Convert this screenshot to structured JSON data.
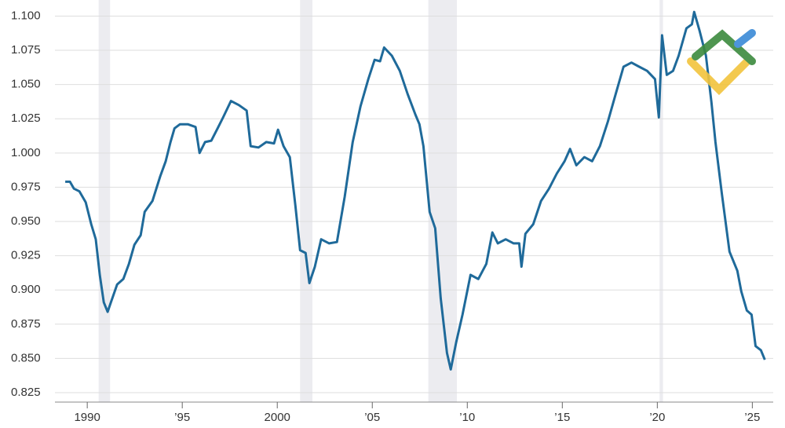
{
  "chart_data": {
    "type": "line",
    "series": [
      {
        "color": "#1f6a9a",
        "x": [
          1988.84,
          1989.09,
          1989.3,
          1989.59,
          1989.92,
          1990.21,
          1990.45,
          1990.66,
          1990.87,
          1991.07,
          1991.32,
          1991.57,
          1991.9,
          1992.19,
          1992.48,
          1992.81,
          1993.02,
          1993.43,
          1993.84,
          1994.13,
          1994.38,
          1994.59,
          1994.88,
          1995.29,
          1995.7,
          1995.91,
          1996.2,
          1996.53,
          1996.86,
          1997.15,
          1997.56,
          1997.98,
          1998.39,
          1998.6,
          1999.01,
          1999.42,
          1999.83,
          2000.04,
          2000.33,
          2000.66,
          2000.95,
          2001.2,
          2001.49,
          2001.69,
          2001.98,
          2002.31,
          2002.73,
          2003.14,
          2003.55,
          2003.97,
          2004.38,
          2004.79,
          2005.12,
          2005.41,
          2005.62,
          2006.03,
          2006.45,
          2006.86,
          2007.27,
          2007.48,
          2007.69,
          2008.02,
          2008.31,
          2008.6,
          2008.93,
          2009.13,
          2009.42,
          2009.75,
          2010.17,
          2010.58,
          2011.0,
          2011.32,
          2011.61,
          2012.02,
          2012.44,
          2012.73,
          2012.85,
          2013.06,
          2013.47,
          2013.88,
          2014.3,
          2014.71,
          2015.12,
          2015.41,
          2015.74,
          2016.16,
          2016.57,
          2016.98,
          2017.4,
          2017.81,
          2018.22,
          2018.64,
          2019.05,
          2019.46,
          2019.88,
          2020.08,
          2020.25,
          2020.5,
          2020.83,
          2021.12,
          2021.53,
          2021.82,
          2021.94,
          2022.23,
          2022.56,
          2022.85,
          2023.06,
          2023.39,
          2023.8,
          2024.21,
          2024.42,
          2024.71,
          2024.96,
          2025.17,
          2025.45,
          2025.66
        ],
        "values": [
          0.979,
          0.979,
          0.974,
          0.972,
          0.964,
          0.948,
          0.937,
          0.911,
          0.891,
          0.884,
          0.894,
          0.904,
          0.908,
          0.919,
          0.933,
          0.94,
          0.957,
          0.965,
          0.983,
          0.994,
          1.008,
          1.018,
          1.021,
          1.021,
          1.019,
          1.0,
          1.008,
          1.009,
          1.018,
          1.026,
          1.038,
          1.035,
          1.031,
          1.005,
          1.004,
          1.008,
          1.007,
          1.017,
          1.005,
          0.997,
          0.962,
          0.929,
          0.927,
          0.905,
          0.917,
          0.937,
          0.934,
          0.935,
          0.968,
          1.008,
          1.034,
          1.054,
          1.068,
          1.067,
          1.077,
          1.071,
          1.06,
          1.043,
          1.028,
          1.021,
          1.005,
          0.957,
          0.945,
          0.894,
          0.854,
          0.842,
          0.862,
          0.882,
          0.911,
          0.908,
          0.919,
          0.942,
          0.934,
          0.937,
          0.934,
          0.934,
          0.917,
          0.941,
          0.948,
          0.965,
          0.974,
          0.985,
          0.994,
          1.003,
          0.991,
          0.997,
          0.994,
          1.005,
          1.023,
          1.043,
          1.063,
          1.066,
          1.063,
          1.06,
          1.054,
          1.026,
          1.086,
          1.057,
          1.06,
          1.071,
          1.091,
          1.094,
          1.103,
          1.089,
          1.071,
          1.037,
          1.008,
          0.971,
          0.928,
          0.914,
          0.899,
          0.885,
          0.882,
          0.859,
          0.856,
          0.849
        ]
      }
    ],
    "shaded_periods": [
      [
        1990.6,
        1991.2
      ],
      [
        2001.2,
        2001.85
      ],
      [
        2007.95,
        2009.45
      ],
      [
        2020.12,
        2020.3
      ]
    ],
    "xlim": [
      1988.3,
      2026.1
    ],
    "xticks": [
      1990,
      {
        "value": 1995,
        "label": "’95"
      },
      2000,
      {
        "value": 2005,
        "label": "’05"
      },
      {
        "value": 2010,
        "label": "’10"
      },
      {
        "value": 2015,
        "label": "’15"
      },
      {
        "value": 2020,
        "label": "’20"
      },
      {
        "value": 2025,
        "label": "’25"
      }
    ],
    "ylim": [
      0.825,
      1.11
    ],
    "yticks": [
      {
        "value": 0.825,
        "label": "0.825"
      },
      {
        "value": 0.85,
        "label": "0.850"
      },
      {
        "value": 0.875,
        "label": "0.875"
      },
      {
        "value": 0.9,
        "label": "0.900"
      },
      {
        "value": 0.925,
        "label": "0.925"
      },
      {
        "value": 0.95,
        "label": "0.950"
      },
      {
        "value": 0.975,
        "label": "0.975"
      },
      {
        "value": 1.0,
        "label": "1.000"
      },
      {
        "value": 1.025,
        "label": "1.025"
      },
      {
        "value": 1.05,
        "label": "1.050"
      },
      {
        "value": 1.075,
        "label": "1.075"
      },
      {
        "value": 1.1,
        "label": "1.100"
      }
    ],
    "grid": true
  }
}
